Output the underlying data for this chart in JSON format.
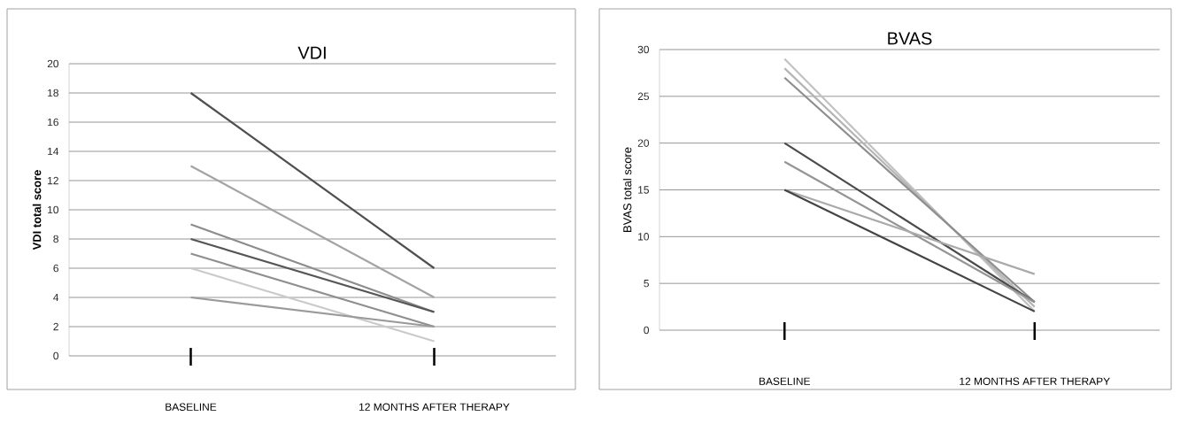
{
  "chart_data": [
    {
      "type": "line",
      "title": "VDI",
      "ylabel": "VDI total score",
      "categories": [
        "BASELINE",
        "12 MONTHS AFTER THERAPY"
      ],
      "ylim": [
        0,
        20
      ],
      "yticks": [
        0,
        2,
        4,
        6,
        8,
        10,
        12,
        14,
        16,
        18,
        20
      ],
      "grid": "y",
      "legend": false,
      "marker": "none",
      "line_style": "solid",
      "series": [
        {
          "color": "#4f4f4f",
          "values": [
            18,
            6
          ]
        },
        {
          "color": "#a3a3a3",
          "values": [
            13,
            4
          ]
        },
        {
          "color": "#8c8c8c",
          "values": [
            9,
            3
          ]
        },
        {
          "color": "#555555",
          "values": [
            8,
            3
          ]
        },
        {
          "color": "#8f8f8f",
          "values": [
            7,
            2
          ]
        },
        {
          "color": "#cacaca",
          "values": [
            6,
            1
          ]
        },
        {
          "color": "#9a9a9a",
          "values": [
            4,
            2
          ]
        }
      ]
    },
    {
      "type": "line",
      "title": "BVAS",
      "ylabel": "BVAS total score",
      "categories": [
        "BASELINE",
        "12 MONTHS AFTER THERAPY"
      ],
      "ylim": [
        0,
        30
      ],
      "yticks": [
        0,
        5,
        10,
        15,
        20,
        25,
        30
      ],
      "grid": "y",
      "legend": false,
      "marker": "none",
      "line_style": "solid",
      "series": [
        {
          "color": "#c2c2c2",
          "values": [
            29,
            2
          ]
        },
        {
          "color": "#b5b5b5",
          "values": [
            28,
            2.5
          ]
        },
        {
          "color": "#8e8e8e",
          "values": [
            27,
            3
          ]
        },
        {
          "color": "#4a4a4a",
          "values": [
            20,
            3
          ]
        },
        {
          "color": "#949494",
          "values": [
            18,
            3
          ]
        },
        {
          "color": "#aaaaaa",
          "values": [
            15,
            6
          ]
        },
        {
          "color": "#444444",
          "values": [
            15,
            2
          ]
        }
      ]
    }
  ]
}
